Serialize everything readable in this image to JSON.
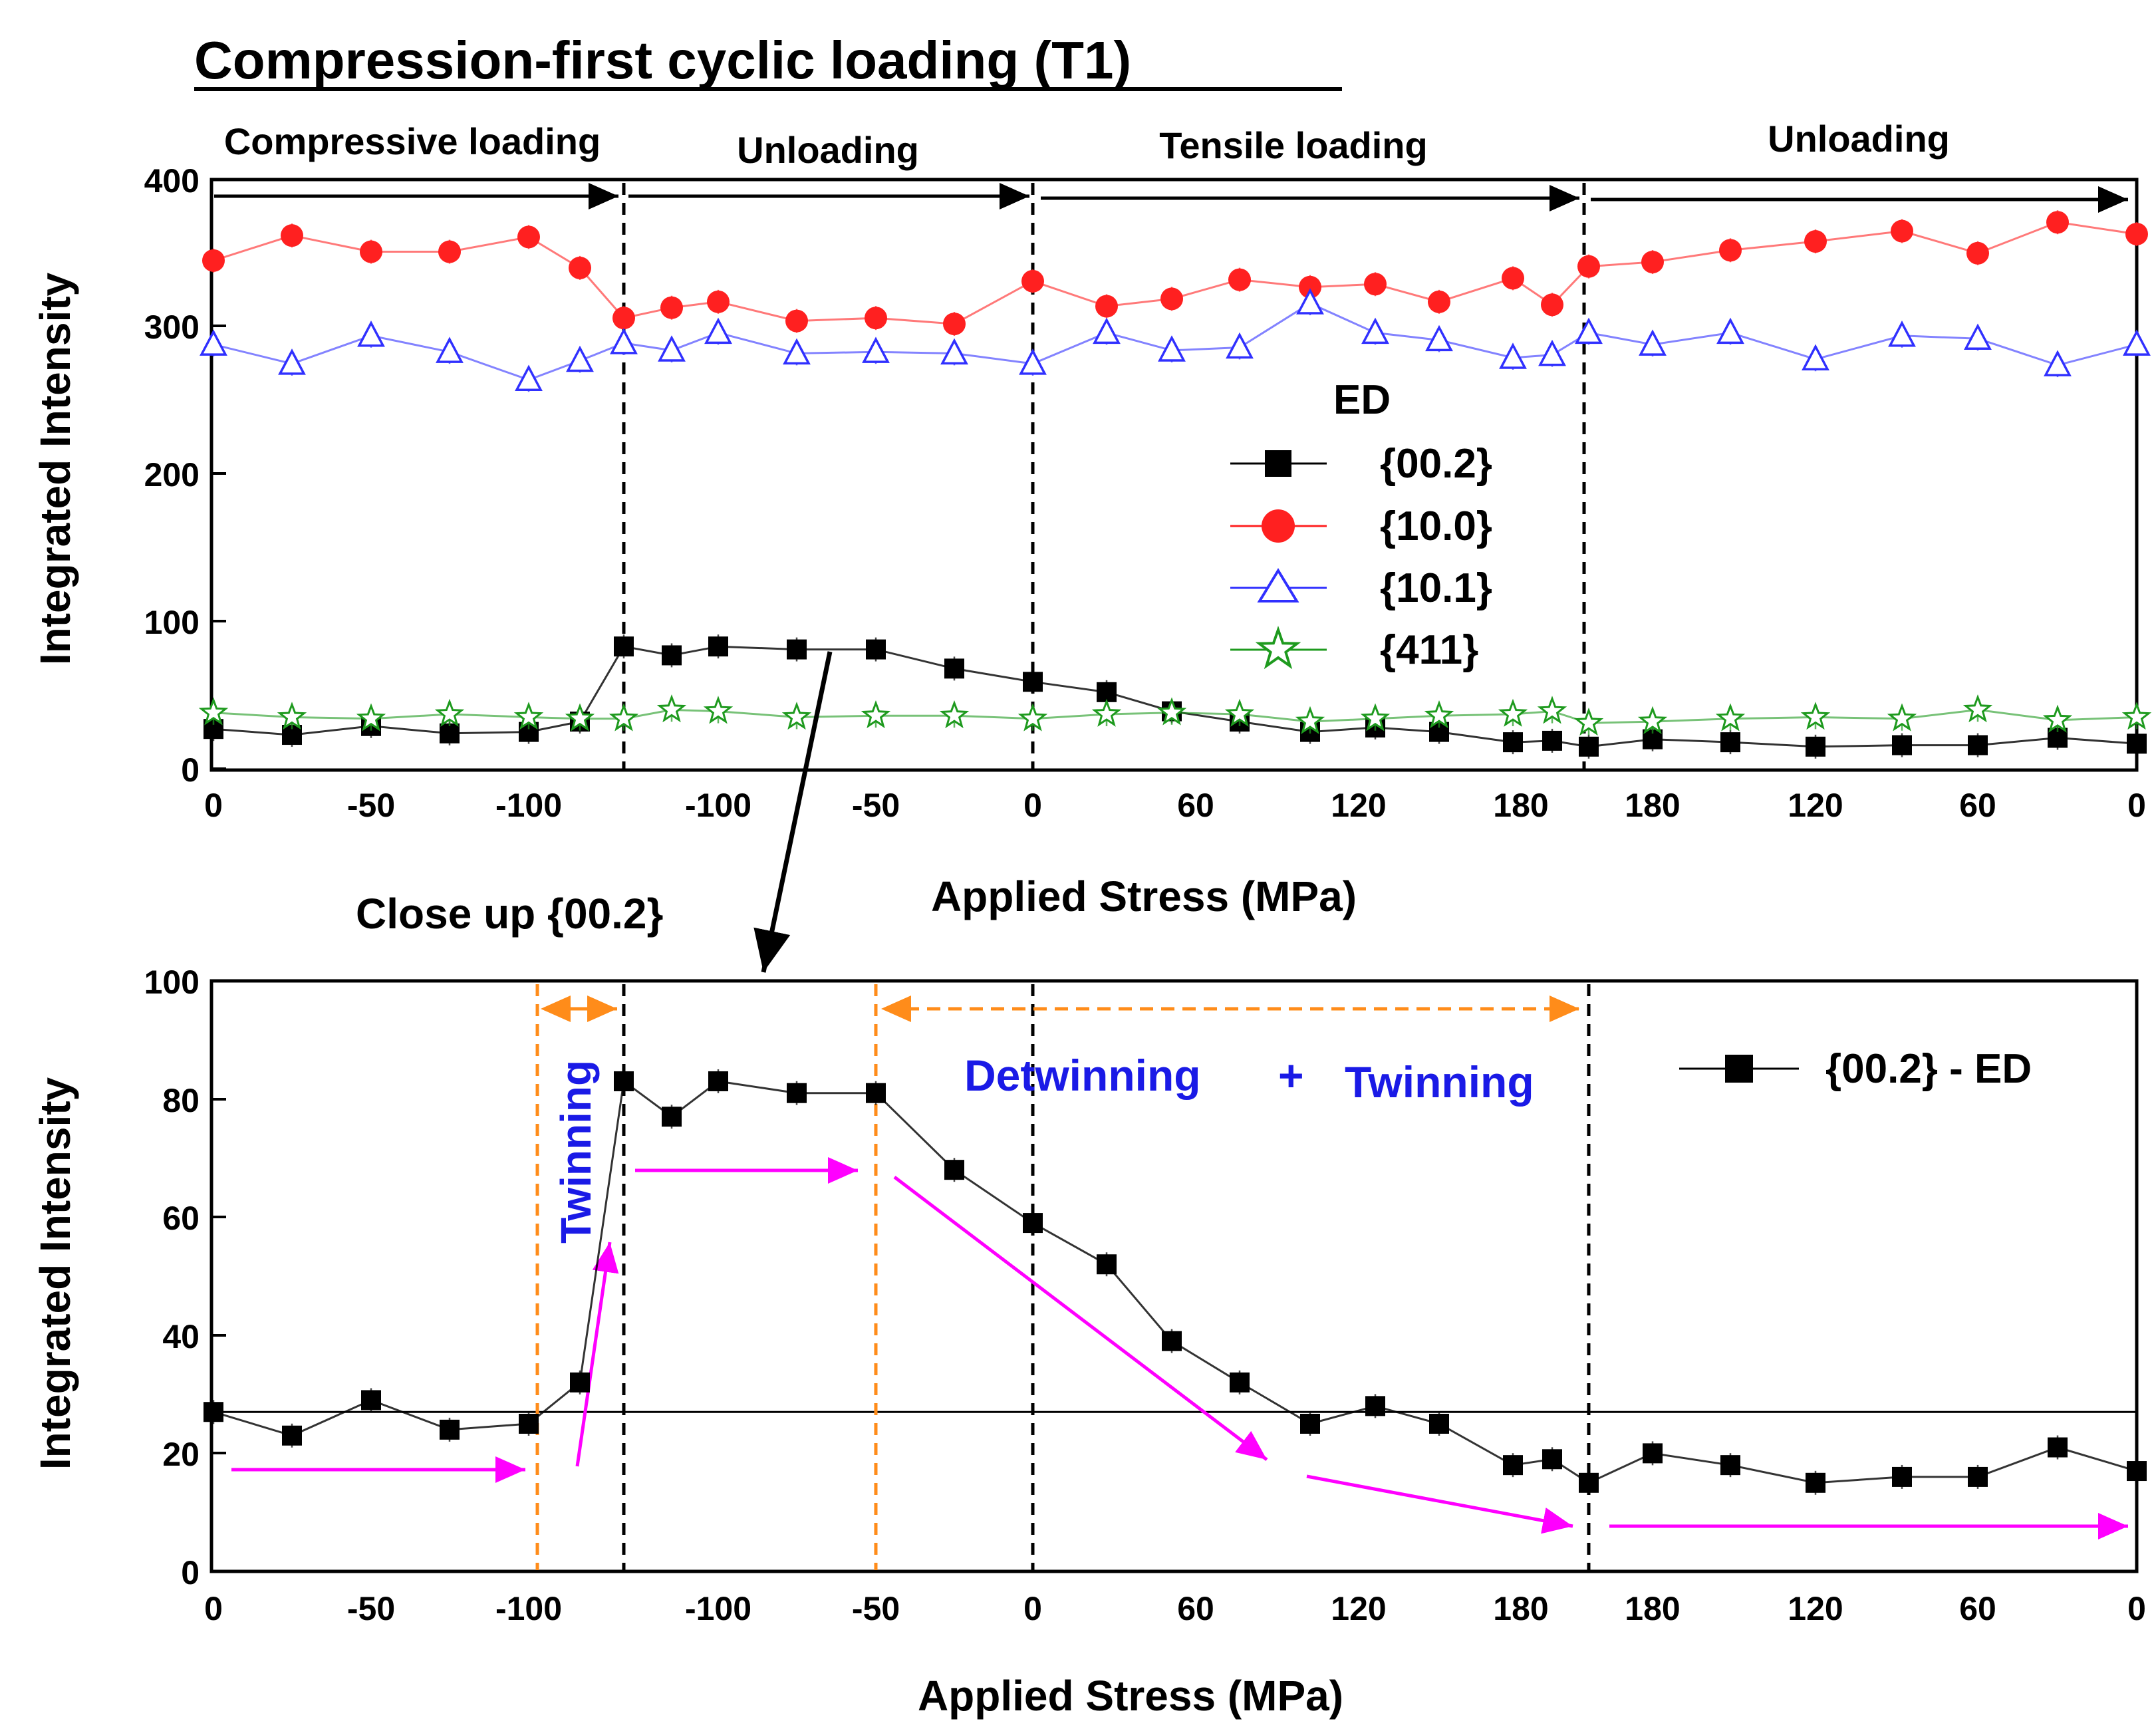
{
  "title": "Compression-first cyclic loading (T1)",
  "chart_data": [
    {
      "type": "line",
      "name": "top",
      "ylabel": "Integrated Intensity",
      "xlabel": "Applied Stress (MPa)",
      "ylim": [
        0,
        400
      ],
      "yticks": [
        "0",
        "100",
        "200",
        "300",
        "400"
      ],
      "phases": [
        "Compressive loading",
        "Unloading",
        "Tensile loading",
        "Unloading"
      ],
      "xticks": [
        "0",
        "-50",
        "-100",
        "-100",
        "-50",
        "0",
        "60",
        "120",
        "180",
        "180",
        "120",
        "60",
        "0"
      ],
      "legend_title": "ED",
      "x": [
        0,
        1,
        2,
        3,
        4,
        5,
        6,
        7,
        8,
        9,
        10,
        11,
        12,
        13,
        14,
        15,
        16,
        17,
        18,
        19,
        20,
        21,
        22,
        23,
        24,
        25,
        26,
        27,
        28
      ],
      "series": [
        {
          "name": "{00.2}",
          "marker": "square",
          "color": "#000000",
          "values": [
            27,
            23,
            29,
            24,
            25,
            32,
            83,
            77,
            83,
            81,
            81,
            68,
            59,
            52,
            39,
            32,
            25,
            28,
            25,
            18,
            19,
            15,
            20,
            18,
            15,
            16,
            16,
            21,
            17
          ]
        },
        {
          "name": "{10.0}",
          "marker": "circle",
          "color": "#ff2020",
          "values": [
            345,
            362,
            351,
            351,
            361,
            340,
            306,
            313,
            317,
            304,
            306,
            302,
            331,
            314,
            319,
            332,
            327,
            329,
            317,
            333,
            315,
            341,
            344,
            352,
            358,
            365,
            350,
            371,
            363
          ]
        },
        {
          "name": "{10.1}",
          "marker": "triangle",
          "color": "#3030ff",
          "values": [
            288,
            275,
            294,
            283,
            264,
            277,
            289,
            284,
            296,
            282,
            283,
            282,
            275,
            296,
            284,
            286,
            316,
            296,
            291,
            279,
            281,
            296,
            288,
            296,
            278,
            294,
            292,
            274,
            288
          ]
        },
        {
          "name": "{411}",
          "marker": "star",
          "color": "#1e9a1e",
          "values": [
            38,
            35,
            34,
            37,
            35,
            34,
            34,
            40,
            39,
            35,
            36,
            36,
            34,
            37,
            38,
            37,
            32,
            34,
            36,
            37,
            39,
            31,
            32,
            34,
            35,
            34,
            40,
            33,
            35
          ]
        }
      ]
    },
    {
      "type": "line",
      "name": "bottom",
      "subtitle": "Close up {00.2}",
      "ylabel": "Integrated Intensity",
      "xlabel": "Applied Stress (MPa)",
      "ylim": [
        0,
        100
      ],
      "yticks": [
        "0",
        "20",
        "40",
        "60",
        "80",
        "100"
      ],
      "xticks": [
        "0",
        "-50",
        "-100",
        "-100",
        "-50",
        "0",
        "60",
        "120",
        "180",
        "180",
        "120",
        "60",
        "0"
      ],
      "baseline": 27,
      "annotations": {
        "twinning": "Twinning",
        "detwinning": "Detwinning",
        "plus": "+",
        "twinning2": "Twinning"
      },
      "x": [
        0,
        1,
        2,
        3,
        4,
        5,
        6,
        7,
        8,
        9,
        10,
        11,
        12,
        13,
        14,
        15,
        16,
        17,
        18,
        19,
        20,
        21,
        22,
        23,
        24,
        25,
        26,
        27,
        28
      ],
      "series": [
        {
          "name": "{00.2} - ED",
          "marker": "square",
          "color": "#000000",
          "values": [
            27,
            23,
            29,
            24,
            25,
            32,
            83,
            77,
            83,
            81,
            81,
            68,
            59,
            52,
            39,
            32,
            25,
            28,
            25,
            18,
            19,
            15,
            20,
            18,
            15,
            16,
            16,
            21,
            17
          ]
        }
      ]
    }
  ]
}
